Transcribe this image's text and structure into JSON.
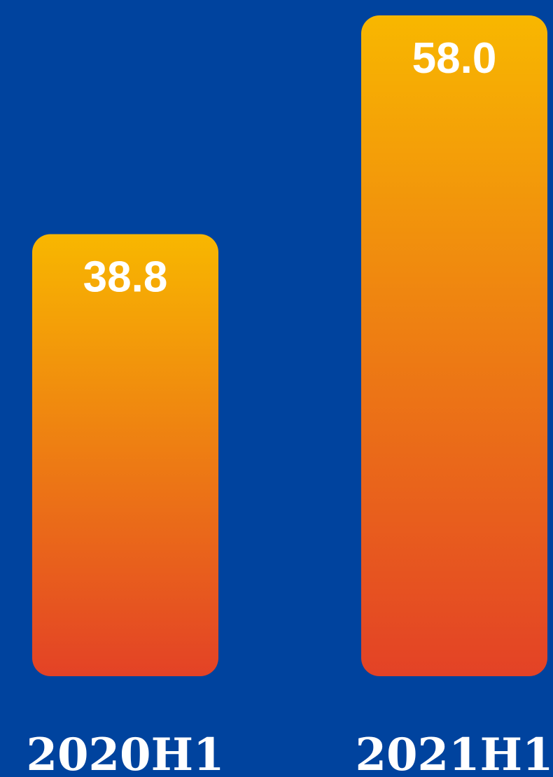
{
  "chart_data": {
    "type": "bar",
    "categories": [
      "2020H1",
      "2021H1"
    ],
    "values": [
      38.8,
      58.0
    ],
    "value_labels": [
      "38.8",
      "58.0"
    ],
    "title": "",
    "xlabel": "",
    "ylabel": "",
    "ylim": [
      0,
      58.0
    ],
    "grid": false,
    "legend": "none"
  },
  "colors": {
    "background": "#00439E",
    "bar_top": "#F8B700",
    "bar_bottom": "#E34226",
    "text": "#FFFFFF"
  }
}
